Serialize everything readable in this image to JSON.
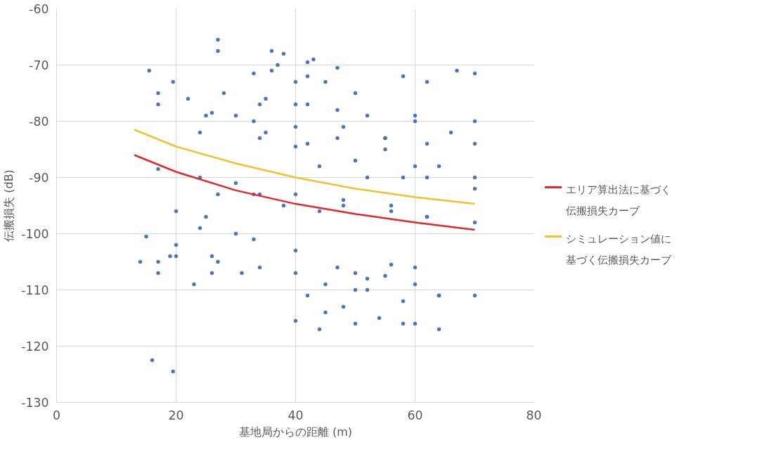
{
  "chart_data": {
    "type": "scatter",
    "xlabel": "基地局からの距離 (m)",
    "ylabel": "伝搬損失 (dB)",
    "xlim": [
      0,
      80
    ],
    "ylim": [
      -130,
      -60
    ],
    "xticks": [
      0,
      20,
      40,
      60,
      80
    ],
    "yticks": [
      -130,
      -120,
      -110,
      -100,
      -90,
      -80,
      -70,
      -60
    ],
    "grid": true,
    "legend": "right",
    "series": [
      {
        "marker": "circle",
        "color": "#4472c4",
        "x": [
          15.5,
          19.5,
          27,
          36,
          27,
          37,
          38,
          42,
          43,
          47,
          33,
          40,
          36,
          42,
          58,
          62,
          67,
          70,
          45,
          50,
          28,
          34,
          35,
          40,
          17,
          25,
          22,
          30,
          26,
          34,
          33,
          42,
          40,
          47,
          48,
          55,
          52,
          60,
          60,
          70,
          55,
          62,
          66,
          70,
          17,
          24,
          17,
          27,
          24,
          33,
          30,
          38,
          34,
          44,
          40,
          48,
          44,
          52,
          50,
          58,
          55,
          64,
          60,
          70,
          62,
          70,
          48,
          56,
          56,
          62,
          62,
          70,
          20,
          24,
          25,
          30,
          15,
          19,
          20,
          26,
          33,
          40,
          34,
          40,
          20,
          26,
          17,
          23,
          14,
          17,
          27,
          31,
          47,
          52,
          50,
          55,
          56,
          60,
          42,
          48,
          45,
          50,
          52,
          58,
          60,
          64,
          64,
          70,
          40,
          44,
          45,
          50,
          54,
          58,
          60,
          64,
          16,
          19.5,
          35,
          40,
          42,
          47
        ],
        "values": [
          -71,
          -73,
          -65.5,
          -67.5,
          -67.5,
          -70,
          -68,
          -69.5,
          -69,
          -70.5,
          -71.5,
          -73,
          -71,
          -72,
          -72,
          -73,
          -71,
          -71.5,
          -73,
          -75,
          -75,
          -77,
          -76,
          -77,
          -75,
          -79,
          -76,
          -79,
          -78.5,
          -83,
          -80,
          -84,
          -81,
          -83,
          -81,
          -83,
          -79,
          -80,
          -79,
          -80,
          -83,
          -84,
          -82,
          -84,
          -77,
          -82,
          -88.5,
          -93,
          -90,
          -93,
          -91,
          -95,
          -93,
          -96,
          -93,
          -95,
          -88,
          -90,
          -87,
          -90,
          -85,
          -88,
          -88,
          -90,
          -90,
          -92,
          -94,
          -96,
          -95,
          -97,
          -97,
          -98,
          -96,
          -99,
          -97,
          -100,
          -100.5,
          -104,
          -102,
          -104,
          -101,
          -103,
          -106,
          -107,
          -104,
          -107,
          -105,
          -109,
          -105,
          -107,
          -105,
          -107,
          -106,
          -108,
          -107,
          -107.5,
          -105.5,
          -106,
          -111,
          -113,
          -109,
          -110,
          -110,
          -112,
          -109,
          -111,
          -111,
          -111,
          -115.5,
          -117,
          -114,
          -116,
          -115,
          -116,
          -116,
          -117,
          -122.5,
          -124.5,
          -82,
          -84.5,
          -77,
          -78
        ]
      },
      {
        "type": "line",
        "name": "エリア算出法に基づく伝搬損失カーブ",
        "color": "#e8262a",
        "x": [
          13,
          20,
          30,
          40,
          50,
          60,
          70
        ],
        "values": [
          -86,
          -89,
          -92.3,
          -94.7,
          -96.5,
          -98,
          -99.3
        ]
      },
      {
        "type": "line",
        "name": "シミュレーション値に基づく伝搬損失カーブ",
        "color": "#f2c12e",
        "x": [
          13,
          20,
          30,
          40,
          50,
          60,
          70
        ],
        "values": [
          -81.5,
          -84.5,
          -87.5,
          -90,
          -92,
          -93.5,
          -94.7
        ]
      }
    ]
  }
}
